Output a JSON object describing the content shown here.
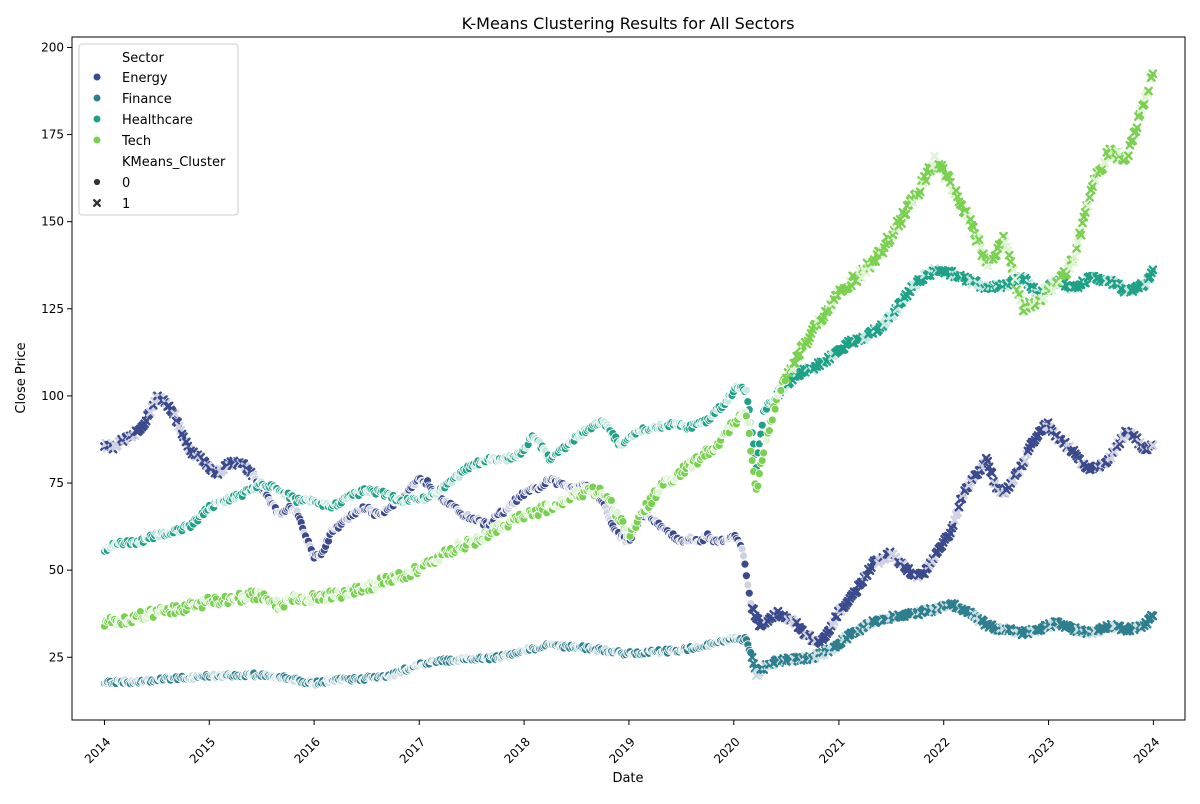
{
  "chart_data": {
    "type": "scatter",
    "title": "K-Means Clustering Results for All Sectors",
    "xlabel": "Date",
    "ylabel": "Close Price",
    "xlim": [
      "2013-09-10",
      "2024-04-20"
    ],
    "ylim": [
      7,
      203
    ],
    "x_ticks": [
      "2014",
      "2015",
      "2016",
      "2017",
      "2018",
      "2019",
      "2020",
      "2021",
      "2022",
      "2023",
      "2024"
    ],
    "y_ticks": [
      25,
      50,
      75,
      100,
      125,
      150,
      175,
      200
    ],
    "grid": false,
    "legend_position": "top-left",
    "legend": {
      "hue_title": "Sector",
      "style_title": "KMeans_Cluster",
      "hue_entries": [
        {
          "label": "Energy",
          "color": "#3b4a8c"
        },
        {
          "label": "Finance",
          "color": "#2e7f8e"
        },
        {
          "label": "Healthcare",
          "color": "#1fa187"
        },
        {
          "label": "Tech",
          "color": "#7ad151"
        }
      ],
      "style_entries": [
        {
          "label": "0",
          "marker": "circle"
        },
        {
          "label": "1",
          "marker": "x"
        }
      ]
    },
    "series": [
      {
        "name": "Energy",
        "color": "#3b4a8c",
        "x": [
          "2014-01-01",
          "2014-02-01",
          "2014-03-01",
          "2014-04-01",
          "2014-05-01",
          "2014-06-01",
          "2014-07-01",
          "2014-08-01",
          "2014-09-01",
          "2014-10-01",
          "2014-11-01",
          "2014-12-01",
          "2015-01-01",
          "2015-02-01",
          "2015-03-01",
          "2015-04-01",
          "2015-05-01",
          "2015-06-01",
          "2015-07-01",
          "2015-08-01",
          "2015-09-01",
          "2015-10-01",
          "2015-11-01",
          "2015-12-01",
          "2016-01-01",
          "2016-02-01",
          "2016-03-01",
          "2016-04-01",
          "2016-05-01",
          "2016-06-01",
          "2016-07-01",
          "2016-08-01",
          "2016-09-01",
          "2016-10-01",
          "2016-11-01",
          "2016-12-01",
          "2017-01-01",
          "2017-02-01",
          "2017-03-01",
          "2017-04-01",
          "2017-05-01",
          "2017-06-01",
          "2017-07-01",
          "2017-08-01",
          "2017-09-01",
          "2017-10-01",
          "2017-11-01",
          "2017-12-01",
          "2018-01-01",
          "2018-02-01",
          "2018-03-01",
          "2018-04-01",
          "2018-05-01",
          "2018-06-01",
          "2018-07-01",
          "2018-08-01",
          "2018-09-01",
          "2018-10-01",
          "2018-11-01",
          "2018-12-01",
          "2019-01-01",
          "2019-02-01",
          "2019-03-01",
          "2019-04-01",
          "2019-05-01",
          "2019-06-01",
          "2019-07-01",
          "2019-08-01",
          "2019-09-01",
          "2019-10-01",
          "2019-11-01",
          "2019-12-01",
          "2020-01-01",
          "2020-02-01",
          "2020-03-01",
          "2020-04-01",
          "2020-05-01",
          "2020-06-01",
          "2020-07-01",
          "2020-08-01",
          "2020-09-01",
          "2020-10-01",
          "2020-11-01",
          "2020-12-01",
          "2021-01-01",
          "2021-02-01",
          "2021-03-01",
          "2021-04-01",
          "2021-05-01",
          "2021-06-01",
          "2021-07-01",
          "2021-08-01",
          "2021-09-01",
          "2021-10-01",
          "2021-11-01",
          "2021-12-01",
          "2022-01-01",
          "2022-02-01",
          "2022-03-01",
          "2022-04-01",
          "2022-05-01",
          "2022-06-01",
          "2022-07-01",
          "2022-08-01",
          "2022-09-01",
          "2022-10-01",
          "2022-11-01",
          "2022-12-01",
          "2023-01-01",
          "2023-02-01",
          "2023-03-01",
          "2023-04-01",
          "2023-05-01",
          "2023-06-01",
          "2023-07-01",
          "2023-08-01",
          "2023-09-01",
          "2023-10-01",
          "2023-11-01",
          "2023-12-01",
          "2023-12-31"
        ],
        "y": [
          86,
          85,
          87,
          88,
          90,
          94,
          100,
          98,
          95,
          88,
          84,
          82,
          79,
          78,
          80,
          81,
          80,
          77,
          74,
          70,
          66,
          68,
          67,
          60,
          54,
          55,
          61,
          63,
          65,
          67,
          68,
          66,
          67,
          69,
          70,
          73,
          76,
          75,
          72,
          70,
          68,
          66,
          65,
          64,
          63,
          66,
          67,
          70,
          72,
          73,
          74,
          76,
          75,
          74,
          74,
          75,
          72,
          70,
          63,
          60,
          58,
          64,
          66,
          64,
          62,
          60,
          58,
          59,
          58,
          60,
          58,
          59,
          60,
          56,
          40,
          34,
          36,
          38,
          36,
          35,
          32,
          30,
          29,
          33,
          38,
          41,
          44,
          48,
          52,
          53,
          55,
          52,
          50,
          48,
          50,
          54,
          58,
          62,
          70,
          75,
          78,
          82,
          74,
          72,
          76,
          80,
          86,
          90,
          92,
          88,
          86,
          84,
          80,
          79,
          80,
          82,
          86,
          90,
          88,
          84,
          86
        ]
      },
      {
        "name": "Finance",
        "color": "#2e7f8e",
        "x": [
          "2014-01-01",
          "2014-04-01",
          "2014-07-01",
          "2014-10-01",
          "2015-01-01",
          "2015-04-01",
          "2015-07-01",
          "2015-10-01",
          "2016-01-01",
          "2016-04-01",
          "2016-07-01",
          "2016-10-01",
          "2017-01-01",
          "2017-04-01",
          "2017-07-01",
          "2017-10-01",
          "2018-01-01",
          "2018-04-01",
          "2018-07-01",
          "2018-10-01",
          "2019-01-01",
          "2019-04-01",
          "2019-07-01",
          "2019-10-01",
          "2020-01-01",
          "2020-02-15",
          "2020-03-20",
          "2020-04-15",
          "2020-06-01",
          "2020-08-01",
          "2020-10-01",
          "2020-12-01",
          "2021-02-01",
          "2021-04-01",
          "2021-06-01",
          "2021-08-01",
          "2021-10-01",
          "2021-12-01",
          "2022-02-01",
          "2022-04-01",
          "2022-06-01",
          "2022-08-01",
          "2022-10-01",
          "2022-12-01",
          "2023-02-01",
          "2023-04-01",
          "2023-06-01",
          "2023-08-01",
          "2023-10-01",
          "2023-12-01",
          "2023-12-31"
        ],
        "y": [
          18,
          18,
          18.5,
          19,
          19.5,
          19.8,
          20,
          19,
          17.5,
          18.5,
          19,
          20,
          23,
          24,
          24.5,
          25,
          27,
          28.5,
          28,
          27,
          26,
          26.5,
          27,
          28.5,
          30.5,
          30,
          20,
          22,
          24,
          24.5,
          25,
          27,
          31,
          34,
          36,
          37,
          37.5,
          39,
          40,
          38,
          34,
          33,
          32,
          33,
          35,
          33,
          32,
          34,
          33,
          34,
          37.5
        ]
      },
      {
        "name": "Healthcare",
        "color": "#1fa187",
        "x": [
          "2014-01-01",
          "2014-03-01",
          "2014-05-01",
          "2014-07-01",
          "2014-09-01",
          "2014-11-01",
          "2015-01-01",
          "2015-03-01",
          "2015-05-01",
          "2015-07-01",
          "2015-09-01",
          "2015-11-01",
          "2016-01-01",
          "2016-03-01",
          "2016-05-01",
          "2016-07-01",
          "2016-09-01",
          "2016-11-01",
          "2017-01-01",
          "2017-03-01",
          "2017-05-01",
          "2017-07-01",
          "2017-09-01",
          "2017-11-01",
          "2018-01-01",
          "2018-02-01",
          "2018-04-01",
          "2018-06-01",
          "2018-08-01",
          "2018-10-01",
          "2018-12-01",
          "2019-02-01",
          "2019-04-01",
          "2019-06-01",
          "2019-08-01",
          "2019-10-01",
          "2019-12-01",
          "2020-01-15",
          "2020-02-15",
          "2020-03-20",
          "2020-04-15",
          "2020-06-01",
          "2020-08-01",
          "2020-10-01",
          "2020-12-01",
          "2021-02-01",
          "2021-04-01",
          "2021-06-01",
          "2021-08-01",
          "2021-10-01",
          "2021-12-01",
          "2022-02-01",
          "2022-04-01",
          "2022-06-01",
          "2022-08-01",
          "2022-10-01",
          "2022-12-01",
          "2023-02-01",
          "2023-04-01",
          "2023-06-01",
          "2023-08-01",
          "2023-10-01",
          "2023-12-01",
          "2023-12-31"
        ],
        "y": [
          56,
          58,
          58,
          60,
          61,
          63,
          68,
          70,
          72,
          75,
          73,
          70,
          70,
          68,
          71,
          73,
          72,
          70,
          70,
          72,
          76,
          80,
          82,
          82,
          84,
          89,
          82,
          86,
          90,
          93,
          86,
          90,
          91,
          92,
          91,
          93,
          98,
          103,
          101,
          80,
          96,
          100,
          106,
          108,
          111,
          115,
          117,
          120,
          126,
          133,
          136,
          135,
          133,
          131,
          132,
          134,
          129,
          133,
          131,
          134,
          133,
          130,
          132,
          136
        ]
      },
      {
        "name": "Tech",
        "color": "#7ad151",
        "x": [
          "2014-01-01",
          "2014-04-01",
          "2014-07-01",
          "2014-10-01",
          "2015-01-01",
          "2015-04-01",
          "2015-07-01",
          "2015-09-01",
          "2015-11-01",
          "2016-01-01",
          "2016-04-01",
          "2016-07-01",
          "2016-10-01",
          "2017-01-01",
          "2017-04-01",
          "2017-07-01",
          "2017-10-01",
          "2018-01-01",
          "2018-04-01",
          "2018-07-01",
          "2018-10-01",
          "2019-01-01",
          "2019-03-01",
          "2019-05-01",
          "2019-07-01",
          "2019-09-01",
          "2019-11-01",
          "2020-01-01",
          "2020-02-15",
          "2020-03-20",
          "2020-04-15",
          "2020-06-01",
          "2020-08-01",
          "2020-10-01",
          "2020-12-01",
          "2021-02-01",
          "2021-04-01",
          "2021-06-01",
          "2021-08-01",
          "2021-10-01",
          "2021-12-01",
          "2022-02-01",
          "2022-04-01",
          "2022-06-01",
          "2022-08-01",
          "2022-10-01",
          "2022-12-01",
          "2023-02-01",
          "2023-04-01",
          "2023-06-01",
          "2023-08-01",
          "2023-10-01",
          "2023-12-01",
          "2023-12-31"
        ],
        "y": [
          35,
          36,
          38,
          39,
          41,
          42,
          43,
          40,
          42,
          42,
          43,
          45,
          48,
          50,
          55,
          58,
          62,
          66,
          68,
          72,
          73,
          60,
          68,
          75,
          78,
          82,
          86,
          92,
          95,
          72,
          85,
          100,
          110,
          118,
          126,
          132,
          136,
          142,
          150,
          158,
          168,
          160,
          150,
          138,
          145,
          125,
          128,
          132,
          140,
          160,
          170,
          168,
          185,
          193
        ]
      }
    ],
    "cluster_switch_dates": {
      "Energy": "2020-03-01",
      "Finance": "2020-03-01",
      "Healthcare": "2020-06-01",
      "Tech": "2020-07-01"
    },
    "energy_early_cluster1_end": "2015-06-01"
  }
}
